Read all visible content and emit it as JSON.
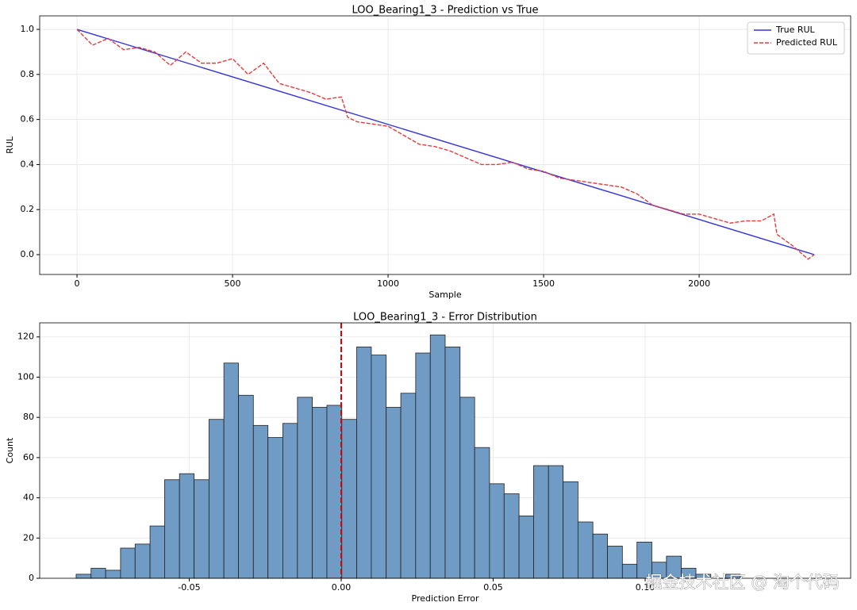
{
  "chart_data": [
    {
      "type": "line",
      "title": "LOO_Bearing1_3 - Prediction vs True",
      "xlabel": "Sample",
      "ylabel": "RUL",
      "series": [
        {
          "name": "True RUL",
          "color": "#3333dd",
          "dash": false,
          "x": [
            0,
            2370
          ],
          "values": [
            1.0,
            0.0
          ]
        },
        {
          "name": "Predicted RUL",
          "color": "#e83a3a",
          "dash": true,
          "x": [
            0,
            50,
            100,
            150,
            200,
            250,
            300,
            350,
            400,
            450,
            500,
            550,
            600,
            650,
            700,
            750,
            800,
            850,
            870,
            900,
            950,
            1000,
            1050,
            1100,
            1150,
            1200,
            1250,
            1300,
            1350,
            1400,
            1450,
            1500,
            1550,
            1600,
            1650,
            1700,
            1750,
            1800,
            1850,
            1900,
            1950,
            2000,
            2050,
            2100,
            2150,
            2200,
            2240,
            2250,
            2300,
            2350,
            2370
          ],
          "values": [
            1.0,
            0.93,
            0.96,
            0.91,
            0.92,
            0.9,
            0.84,
            0.9,
            0.85,
            0.85,
            0.87,
            0.8,
            0.85,
            0.76,
            0.74,
            0.72,
            0.69,
            0.7,
            0.61,
            0.59,
            0.58,
            0.57,
            0.53,
            0.49,
            0.48,
            0.46,
            0.43,
            0.4,
            0.4,
            0.41,
            0.38,
            0.37,
            0.34,
            0.33,
            0.32,
            0.31,
            0.3,
            0.27,
            0.22,
            0.2,
            0.18,
            0.18,
            0.16,
            0.14,
            0.15,
            0.15,
            0.18,
            0.09,
            0.04,
            -0.02,
            0.0
          ]
        }
      ],
      "xlim": [
        -120,
        2487
      ],
      "ylim": [
        -0.088,
        1.06
      ],
      "xticks": [
        0,
        500,
        1000,
        1500,
        2000
      ],
      "yticks": [
        {
          "value": 0,
          "label": "0.0"
        },
        {
          "value": 0.2,
          "label": "0.2"
        },
        {
          "value": 0.4,
          "label": "0.4"
        },
        {
          "value": 0.6,
          "label": "0.6"
        },
        {
          "value": 0.8,
          "label": "0.8"
        },
        {
          "value": 1.0,
          "label": "1.0"
        }
      ],
      "grid": true,
      "legend": "upper-right"
    },
    {
      "type": "histogram",
      "title": "LOO_Bearing1_3 - Error Distribution",
      "xlabel": "Prediction Error",
      "ylabel": "Count",
      "color": "#6f9bc4",
      "bins": [
        -0.0872,
        -0.0823,
        -0.0775,
        -0.0726,
        -0.0678,
        -0.0629,
        -0.0581,
        -0.0532,
        -0.0484,
        -0.0435,
        -0.0386,
        -0.0338,
        -0.0289,
        -0.0241,
        -0.0192,
        -0.0144,
        -0.0095,
        -0.0047,
        0.0002,
        0.0051,
        0.0099,
        0.0148,
        0.0196,
        0.0245,
        0.0293,
        0.0342,
        0.0391,
        0.0439,
        0.0488,
        0.0536,
        0.0585,
        0.0633,
        0.0682,
        0.073,
        0.0779,
        0.0828,
        0.0876,
        0.0925,
        0.0973,
        0.1022,
        0.107,
        0.1119,
        0.1167,
        0.1216,
        0.1265,
        0.1313
      ],
      "values": [
        2,
        5,
        4,
        15,
        17,
        26,
        49,
        52,
        49,
        79,
        107,
        91,
        76,
        70,
        77,
        90,
        85,
        86,
        79,
        115,
        111,
        85,
        92,
        112,
        121,
        115,
        90,
        65,
        47,
        42,
        31,
        56,
        56,
        48,
        28,
        22,
        16,
        7,
        18,
        8,
        11,
        5,
        2,
        0,
        2
      ],
      "vline": 0,
      "vline_color": "#e00000",
      "xlim": [
        -0.0992,
        0.1676
      ],
      "ylim": [
        0,
        127
      ],
      "xticks": [
        {
          "value": -0.05,
          "label": "-0.05"
        },
        {
          "value": 0,
          "label": "0.00"
        },
        {
          "value": 0.05,
          "label": "0.05"
        },
        {
          "value": 0.1,
          "label": "0.10"
        }
      ],
      "yticks": [
        0,
        20,
        40,
        60,
        80,
        100,
        120
      ],
      "grid": true
    }
  ],
  "watermark": "掘金技术社区 @ 淘个代码"
}
